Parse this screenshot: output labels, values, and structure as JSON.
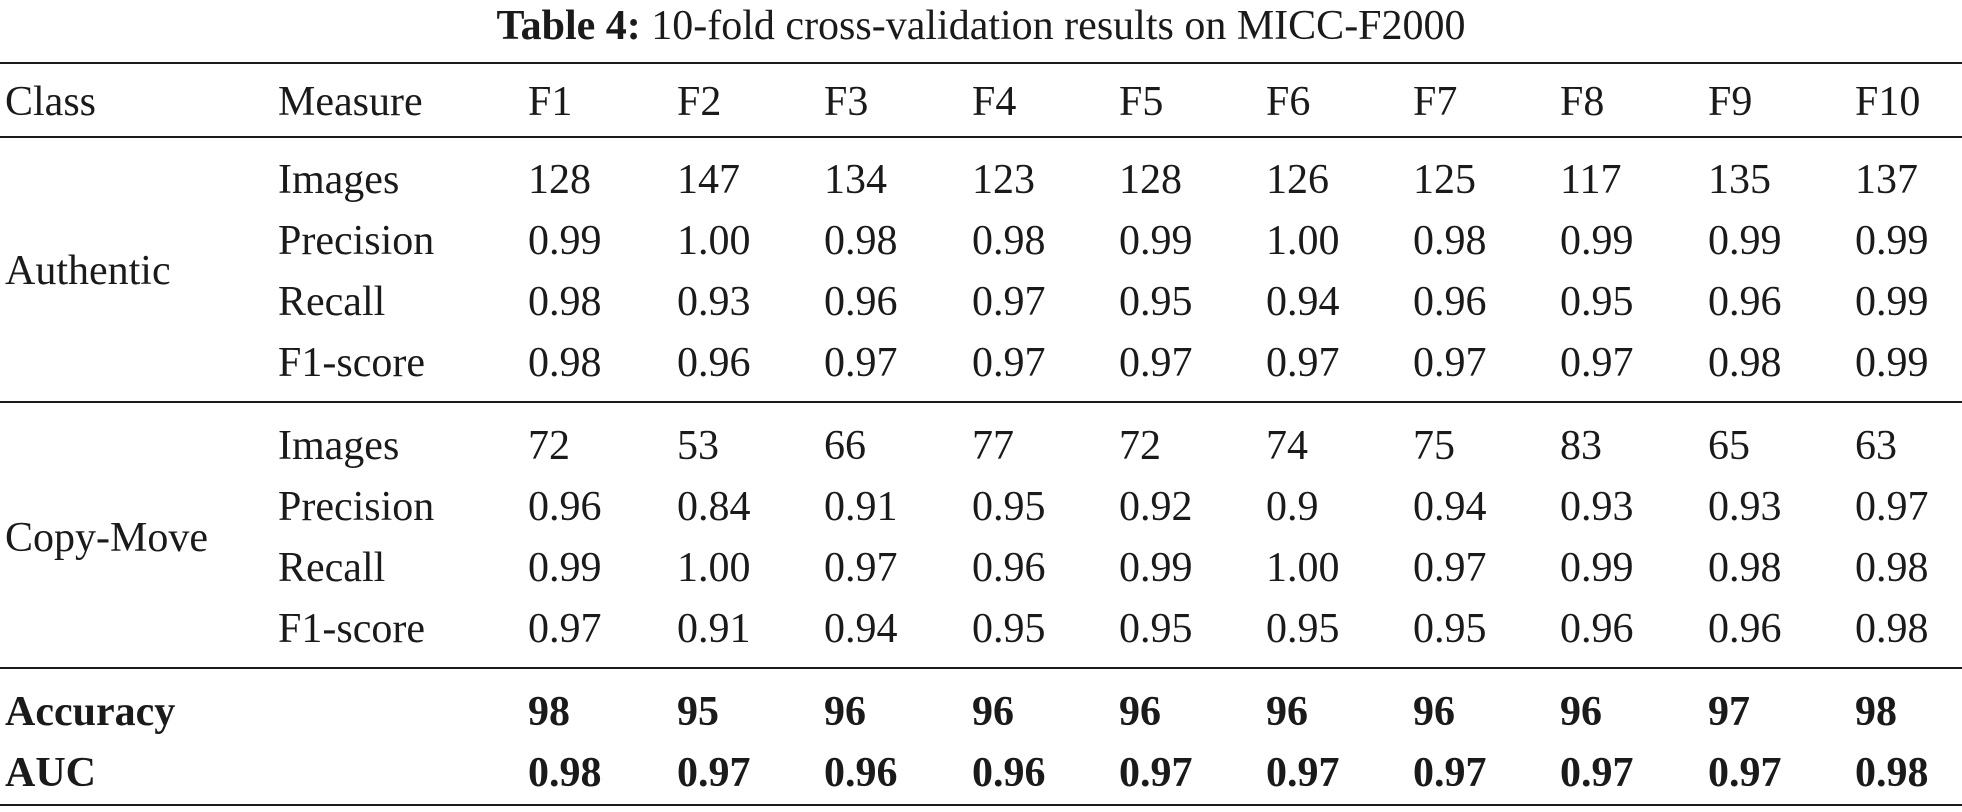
{
  "caption": {
    "label": "Table 4:",
    "text": "10-fold cross-validation results on MICC-F2000"
  },
  "header": [
    "Class",
    "Measure",
    "F1",
    "F2",
    "F3",
    "F4",
    "F5",
    "F6",
    "F7",
    "F8",
    "F9",
    "F10"
  ],
  "groups": [
    {
      "class": "Authentic",
      "rows": [
        {
          "measure": "Images",
          "values": [
            "128",
            "147",
            "134",
            "123",
            "128",
            "126",
            "125",
            "117",
            "135",
            "137"
          ]
        },
        {
          "measure": "Precision",
          "values": [
            "0.99",
            "1.00",
            "0.98",
            "0.98",
            "0.99",
            "1.00",
            "0.98",
            "0.99",
            "0.99",
            "0.99"
          ]
        },
        {
          "measure": "Recall",
          "values": [
            "0.98",
            "0.93",
            "0.96",
            "0.97",
            "0.95",
            "0.94",
            "0.96",
            "0.95",
            "0.96",
            "0.99"
          ]
        },
        {
          "measure": "F1-score",
          "values": [
            "0.98",
            "0.96",
            "0.97",
            "0.97",
            "0.97",
            "0.97",
            "0.97",
            "0.97",
            "0.98",
            "0.99"
          ]
        }
      ]
    },
    {
      "class": "Copy-Move",
      "rows": [
        {
          "measure": "Images",
          "values": [
            "72",
            "53",
            "66",
            "77",
            "72",
            "74",
            "75",
            "83",
            "65",
            "63"
          ]
        },
        {
          "measure": "Precision",
          "values": [
            "0.96",
            "0.84",
            "0.91",
            "0.95",
            "0.92",
            "0.9",
            "0.94",
            "0.93",
            "0.93",
            "0.97"
          ]
        },
        {
          "measure": "Recall",
          "values": [
            "0.99",
            "1.00",
            "0.97",
            "0.96",
            "0.99",
            "1.00",
            "0.97",
            "0.99",
            "0.98",
            "0.98"
          ]
        },
        {
          "measure": "F1-score",
          "values": [
            "0.97",
            "0.91",
            "0.94",
            "0.95",
            "0.95",
            "0.95",
            "0.95",
            "0.96",
            "0.96",
            "0.98"
          ]
        }
      ]
    }
  ],
  "summary": [
    {
      "label": "Accuracy",
      "values": [
        "98",
        "95",
        "96",
        "96",
        "96",
        "96",
        "96",
        "96",
        "97",
        "98"
      ]
    },
    {
      "label": "AUC",
      "values": [
        "0.98",
        "0.97",
        "0.96",
        "0.96",
        "0.97",
        "0.97",
        "0.97",
        "0.97",
        "0.97",
        "0.98"
      ]
    }
  ]
}
